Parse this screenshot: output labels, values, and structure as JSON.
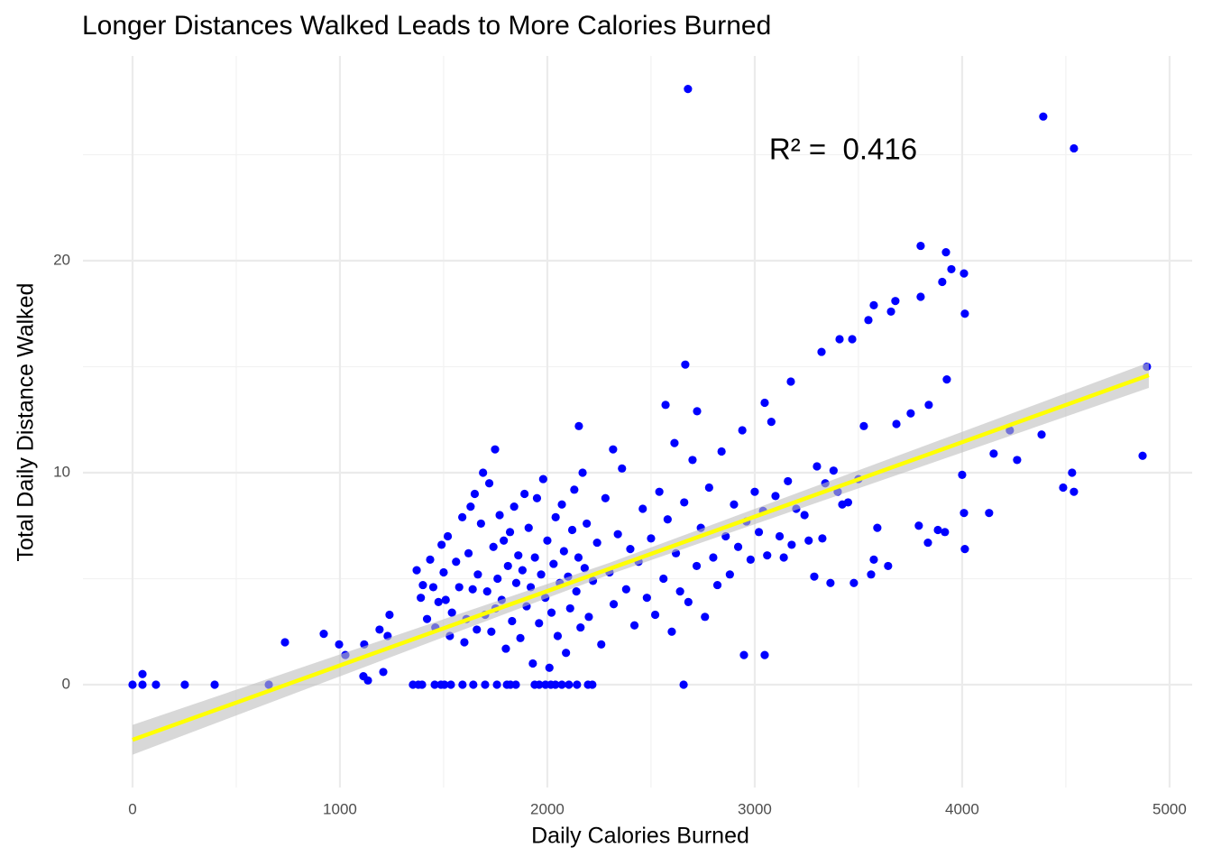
{
  "chart_data": {
    "type": "scatter",
    "title": "Longer Distances Walked Leads to More Calories Burned",
    "x_label": "Daily Calories Burned",
    "y_label": "Total Daily Distance Walked",
    "annotation": "R² =  0.416",
    "xlim": [
      -239,
      5109
    ],
    "ylim": [
      -4.85,
      29.66
    ],
    "xticks": [
      0,
      1000,
      2000,
      3000,
      4000,
      5000
    ],
    "yticks": [
      0,
      10,
      20
    ],
    "x_minor_grid": [
      500,
      1500,
      2500,
      3500,
      4500
    ],
    "y_minor_grid": [
      5,
      15,
      25
    ],
    "grid": true,
    "color": "#0000ff",
    "trend": {
      "color": "#ffff00",
      "band_color": "#bebebe",
      "x": [
        0,
        2300,
        4900
      ],
      "y": [
        -2.6,
        5.47,
        14.6
      ],
      "lower": [
        -3.3,
        5.2,
        14.0
      ],
      "upper": [
        -1.9,
        5.75,
        15.2
      ]
    },
    "x": [
      2678,
      4391,
      4539,
      3922,
      3800,
      4009,
      3948,
      3904,
      4013,
      3800,
      3678,
      3574,
      3548,
      3657,
      3470,
      3409,
      3322,
      4891,
      2665,
      3926,
      3174,
      3839,
      2570,
      3048,
      2722,
      3752,
      3526,
      3683,
      2152,
      4230,
      4383,
      1748,
      2613,
      2317,
      4870,
      4265,
      4152,
      4530,
      4000,
      4539,
      4487,
      4009,
      4130,
      4013,
      3917,
      3883,
      3791,
      3835,
      3422,
      3478,
      3365,
      3287,
      3048,
      2948,
      2657,
      3561,
      3574,
      3643,
      3591,
      3326,
      3178,
      0,
      48,
      48,
      113,
      252,
      396,
      657,
      735,
      922,
      996,
      1026,
      1117,
      1113,
      1135,
      1191,
      1239,
      1209,
      1230,
      1352,
      1378,
      1396,
      1457,
      1487,
      1504,
      1535,
      1591,
      1643,
      1700,
      1757,
      1805,
      1822,
      1848,
      1939,
      1961,
      1991,
      2017,
      2039,
      2070,
      2104,
      2143,
      2196,
      2217,
      1370,
      1390,
      1400,
      1420,
      1435,
      1450,
      1460,
      1475,
      1490,
      1500,
      1510,
      1520,
      1530,
      1540,
      1560,
      1575,
      1590,
      1600,
      1610,
      1620,
      1630,
      1640,
      1650,
      1660,
      1665,
      1680,
      1690,
      1700,
      1710,
      1720,
      1730,
      1740,
      1750,
      1760,
      1770,
      1780,
      1790,
      1800,
      1810,
      1820,
      1830,
      1840,
      1850,
      1860,
      1870,
      1880,
      1890,
      1900,
      1910,
      1920,
      1930,
      1940,
      1950,
      1960,
      1970,
      1980,
      1990,
      2000,
      2010,
      2020,
      2030,
      2040,
      2050,
      2060,
      2070,
      2080,
      2090,
      2100,
      2110,
      2120,
      2130,
      2140,
      2150,
      2160,
      2170,
      2180,
      2190,
      2200,
      2220,
      2240,
      2260,
      2280,
      2300,
      2320,
      2340,
      2360,
      2380,
      2400,
      2420,
      2440,
      2460,
      2480,
      2500,
      2520,
      2540,
      2560,
      2580,
      2600,
      2620,
      2640,
      2660,
      2680,
      2700,
      2720,
      2740,
      2760,
      2780,
      2800,
      2820,
      2840,
      2860,
      2880,
      2900,
      2920,
      2940,
      2960,
      2980,
      3000,
      3020,
      3040,
      3060,
      3080,
      3100,
      3120,
      3140,
      3160,
      3200,
      3240,
      3260,
      3300,
      3340,
      3380,
      3400,
      3450,
      3500
    ],
    "y": [
      28.1,
      26.8,
      25.3,
      20.4,
      20.7,
      19.4,
      19.6,
      19.0,
      17.5,
      18.3,
      18.1,
      17.9,
      17.2,
      17.6,
      16.3,
      16.3,
      15.7,
      15.0,
      15.1,
      14.4,
      14.3,
      13.2,
      13.2,
      13.3,
      12.9,
      12.8,
      12.2,
      12.3,
      12.2,
      12.0,
      11.8,
      11.1,
      11.4,
      11.1,
      10.8,
      10.6,
      10.9,
      10.0,
      9.9,
      9.1,
      9.3,
      8.1,
      8.1,
      6.4,
      7.2,
      7.3,
      7.5,
      6.7,
      8.5,
      4.8,
      4.8,
      5.1,
      1.4,
      1.4,
      0.0,
      5.2,
      5.9,
      5.6,
      7.4,
      6.9,
      6.6,
      0,
      0.5,
      0,
      0,
      0,
      0,
      0,
      2.0,
      2.4,
      1.9,
      1.4,
      1.9,
      0.4,
      0.2,
      2.6,
      3.3,
      0.6,
      2.3,
      0,
      0,
      0,
      0,
      0,
      0,
      0,
      0,
      0,
      0,
      0,
      0,
      0,
      0,
      0,
      0,
      0,
      0,
      0,
      0,
      0,
      0,
      0,
      0,
      5.4,
      4.1,
      4.7,
      3.1,
      5.9,
      4.6,
      2.7,
      3.9,
      6.6,
      5.3,
      4.0,
      7.0,
      2.3,
      3.4,
      5.8,
      4.6,
      7.9,
      2.0,
      3.1,
      6.2,
      8.4,
      4.5,
      9.0,
      2.6,
      5.2,
      7.6,
      10.0,
      3.3,
      4.4,
      9.5,
      2.5,
      6.5,
      3.6,
      5.0,
      8.0,
      4.0,
      6.8,
      1.7,
      5.6,
      7.2,
      3.0,
      8.4,
      4.8,
      6.1,
      2.2,
      5.4,
      9.0,
      3.7,
      7.4,
      4.6,
      1.0,
      6.0,
      8.8,
      2.9,
      5.2,
      9.7,
      4.1,
      6.8,
      0.8,
      3.4,
      5.7,
      7.9,
      2.3,
      4.8,
      8.5,
      6.3,
      1.5,
      5.1,
      3.6,
      7.3,
      9.2,
      4.4,
      6.0,
      2.7,
      10.0,
      5.5,
      7.6,
      3.2,
      4.9,
      6.7,
      1.9,
      8.8,
      5.3,
      3.8,
      7.1,
      10.2,
      4.5,
      6.4,
      2.8,
      5.8,
      8.3,
      4.1,
      6.9,
      3.3,
      9.1,
      5.0,
      7.8,
      2.5,
      6.2,
      4.4,
      8.6,
      3.9,
      10.6,
      5.6,
      7.4,
      3.2,
      9.3,
      6.0,
      4.7,
      11.0,
      7.0,
      5.2,
      8.5,
      6.5,
      12.0,
      7.7,
      5.9,
      9.1,
      7.2,
      8.2,
      6.1,
      12.4,
      8.9,
      7.0,
      6.0,
      9.6,
      8.3,
      8.0,
      6.8,
      10.3,
      9.5,
      10.1,
      9.1,
      8.6,
      9.7
    ]
  }
}
